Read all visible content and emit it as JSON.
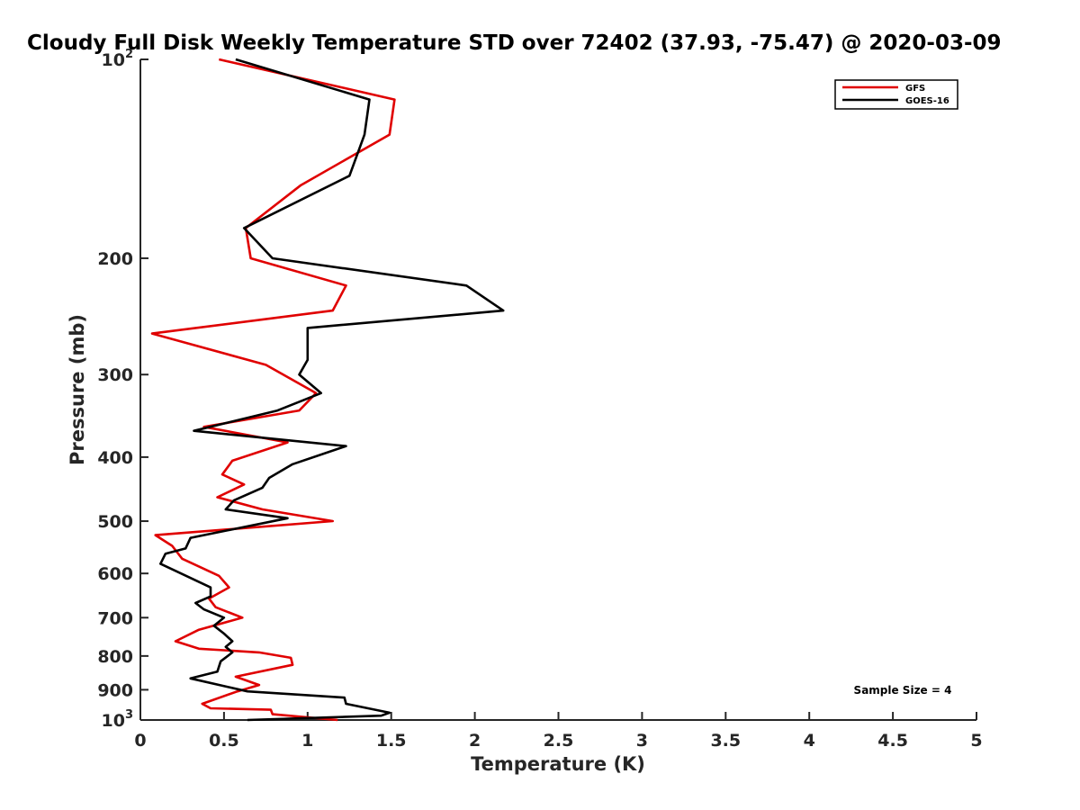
{
  "chart_data": {
    "type": "line",
    "title": "Cloudy Full Disk Weekly Temperature STD over 72402 (37.93, -75.47) @ 2020-03-09",
    "xlabel": "Temperature (K)",
    "ylabel": "Pressure (mb)",
    "xlim": [
      0,
      5
    ],
    "ylim": [
      100,
      1000
    ],
    "yscale": "log",
    "y_reversed": true,
    "x_ticks": [
      "0",
      "0.5",
      "1",
      "1.5",
      "2",
      "2.5",
      "3",
      "3.5",
      "4",
      "4.5",
      "5"
    ],
    "y_ticks": [
      {
        "value": 100,
        "base": "10",
        "exp": "2"
      },
      {
        "value": 200,
        "label": "200"
      },
      {
        "value": 300,
        "label": "300"
      },
      {
        "value": 400,
        "label": "400"
      },
      {
        "value": 500,
        "label": "500"
      },
      {
        "value": 600,
        "label": "600"
      },
      {
        "value": 700,
        "label": "700"
      },
      {
        "value": 800,
        "label": "800"
      },
      {
        "value": 900,
        "label": "900"
      },
      {
        "value": 1000,
        "base": "10",
        "exp": "3"
      }
    ],
    "legend_position": "top-right",
    "annotation": "Sample Size = 4",
    "series": [
      {
        "name": "GFS",
        "color": "#e00000",
        "points": [
          [
            0.47,
            100
          ],
          [
            1.52,
            115
          ],
          [
            1.49,
            130
          ],
          [
            0.96,
            155
          ],
          [
            0.63,
            180
          ],
          [
            0.66,
            200
          ],
          [
            1.23,
            220
          ],
          [
            1.15,
            240
          ],
          [
            0.07,
            260
          ],
          [
            0.75,
            290
          ],
          [
            1.05,
            320
          ],
          [
            0.95,
            340
          ],
          [
            0.38,
            360
          ],
          [
            0.88,
            380
          ],
          [
            0.55,
            405
          ],
          [
            0.49,
            425
          ],
          [
            0.62,
            440
          ],
          [
            0.46,
            460
          ],
          [
            0.73,
            480
          ],
          [
            1.15,
            500
          ],
          [
            0.09,
            525
          ],
          [
            0.19,
            545
          ],
          [
            0.25,
            570
          ],
          [
            0.47,
            605
          ],
          [
            0.53,
            630
          ],
          [
            0.41,
            655
          ],
          [
            0.45,
            675
          ],
          [
            0.61,
            700
          ],
          [
            0.35,
            730
          ],
          [
            0.21,
            760
          ],
          [
            0.35,
            780
          ],
          [
            0.71,
            790
          ],
          [
            0.9,
            805
          ],
          [
            0.91,
            825
          ],
          [
            0.57,
            860
          ],
          [
            0.71,
            885
          ],
          [
            0.58,
            905
          ],
          [
            0.37,
            945
          ],
          [
            0.42,
            960
          ],
          [
            0.78,
            965
          ],
          [
            0.79,
            980
          ],
          [
            1.18,
            1000
          ]
        ]
      },
      {
        "name": "GOES-16",
        "color": "#000000",
        "points": [
          [
            0.57,
            100
          ],
          [
            1.37,
            115
          ],
          [
            1.34,
            130
          ],
          [
            1.25,
            150
          ],
          [
            0.62,
            180
          ],
          [
            0.79,
            200
          ],
          [
            1.95,
            220
          ],
          [
            2.17,
            240
          ],
          [
            1.0,
            255
          ],
          [
            1.0,
            285
          ],
          [
            0.95,
            300
          ],
          [
            1.08,
            320
          ],
          [
            0.82,
            340
          ],
          [
            0.32,
            365
          ],
          [
            1.23,
            385
          ],
          [
            0.91,
            410
          ],
          [
            0.77,
            430
          ],
          [
            0.73,
            445
          ],
          [
            0.56,
            465
          ],
          [
            0.51,
            480
          ],
          [
            0.88,
            495
          ],
          [
            0.3,
            530
          ],
          [
            0.27,
            550
          ],
          [
            0.15,
            560
          ],
          [
            0.12,
            580
          ],
          [
            0.42,
            630
          ],
          [
            0.42,
            650
          ],
          [
            0.33,
            665
          ],
          [
            0.38,
            680
          ],
          [
            0.5,
            700
          ],
          [
            0.44,
            720
          ],
          [
            0.5,
            740
          ],
          [
            0.55,
            760
          ],
          [
            0.51,
            775
          ],
          [
            0.55,
            790
          ],
          [
            0.48,
            815
          ],
          [
            0.46,
            845
          ],
          [
            0.3,
            865
          ],
          [
            0.64,
            905
          ],
          [
            1.22,
            925
          ],
          [
            1.23,
            945
          ],
          [
            1.49,
            975
          ],
          [
            1.44,
            985
          ],
          [
            0.64,
            1000
          ]
        ]
      }
    ]
  }
}
